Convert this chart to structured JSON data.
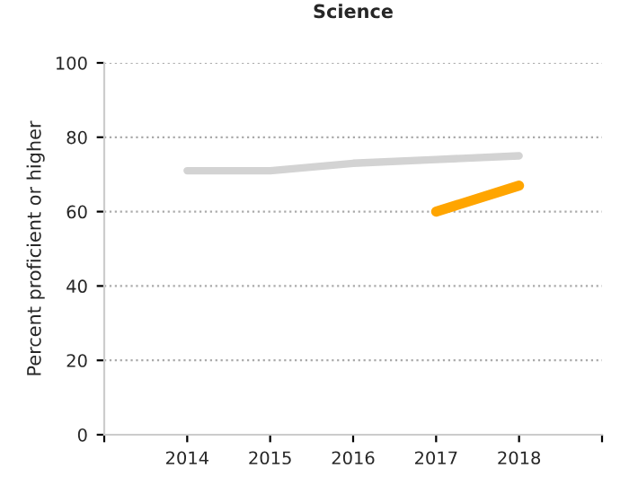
{
  "chart_data": {
    "type": "line",
    "title": "Science",
    "ylabel": "Percent proficient or higher",
    "x": [
      2014,
      2015,
      2016,
      2017,
      2018
    ],
    "series": [
      {
        "color": "#d3d3d3",
        "values": [
          71,
          71,
          73,
          74,
          75
        ]
      },
      {
        "color": "#ffa500",
        "values": [
          null,
          null,
          null,
          60,
          67
        ]
      }
    ],
    "xlim": [
      2013,
      2019
    ],
    "xticks": [
      {
        "value": 2013,
        "label": null
      },
      2014,
      2015,
      2016,
      2017,
      2018,
      {
        "value": 2019,
        "label": null
      }
    ],
    "ylim": [
      0,
      100
    ],
    "yticks": [
      0,
      20,
      40,
      60,
      80,
      100
    ],
    "grid": "y",
    "legend": false,
    "marker": "none",
    "line_style": "solid"
  }
}
